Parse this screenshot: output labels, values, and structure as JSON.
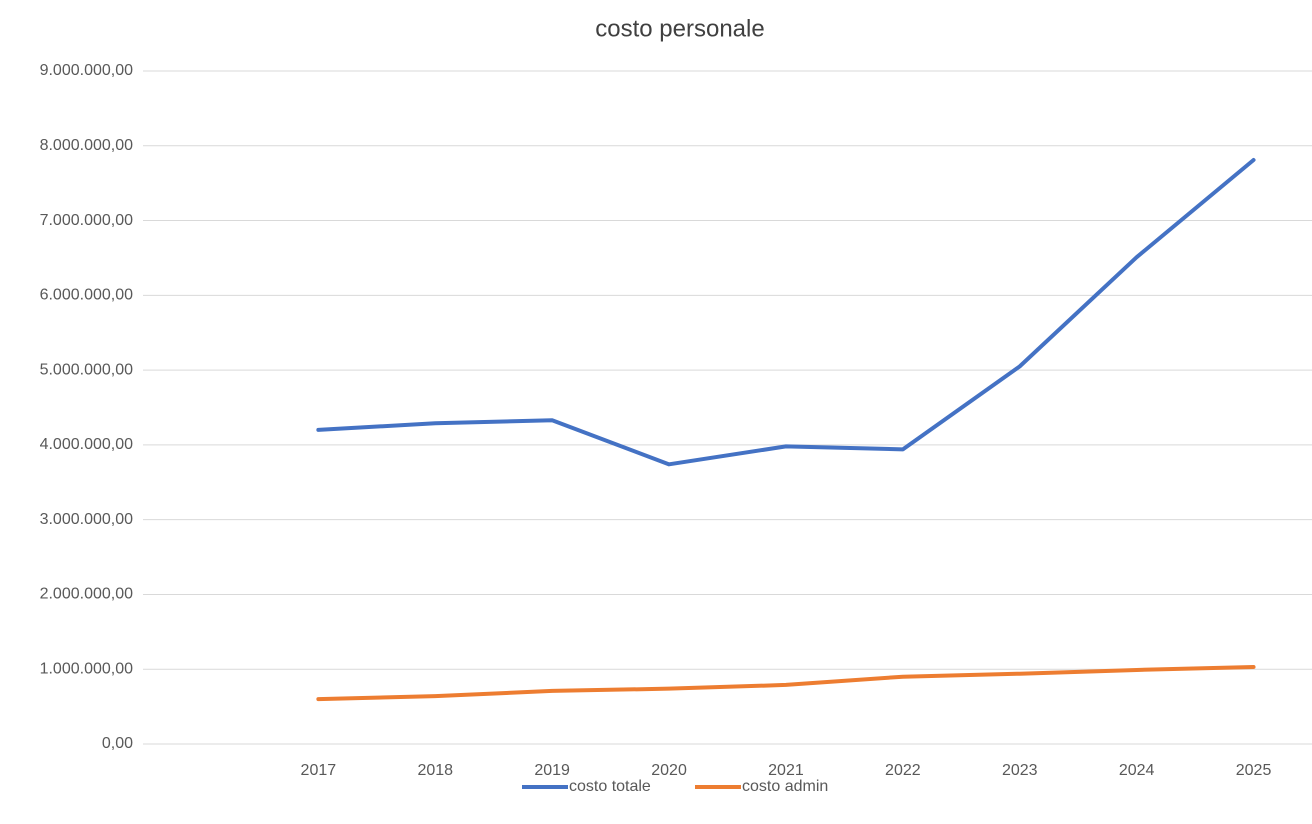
{
  "chart_data": {
    "type": "line",
    "title": "costo personale",
    "categories": [
      null,
      "2017",
      "2018",
      "2019",
      "2020",
      "2021",
      "2022",
      "2023",
      "2024",
      "2025"
    ],
    "series": [
      {
        "name": "costo totale",
        "color": "#4472c4",
        "values": [
          null,
          4200000,
          4290000,
          4330000,
          3740000,
          3980000,
          3940000,
          5050000,
          6510000,
          7810000
        ]
      },
      {
        "name": "costo admin",
        "color": "#ed7d31",
        "values": [
          null,
          600000,
          640000,
          710000,
          740000,
          790000,
          900000,
          940000,
          990000,
          1030000
        ]
      }
    ],
    "ylim": [
      0,
      9000000
    ],
    "yticks": [
      {
        "value": 0,
        "label": "0,00"
      },
      {
        "value": 1000000,
        "label": "1.000.000,00"
      },
      {
        "value": 2000000,
        "label": "2.000.000,00"
      },
      {
        "value": 3000000,
        "label": "3.000.000,00"
      },
      {
        "value": 4000000,
        "label": "4.000.000,00"
      },
      {
        "value": 5000000,
        "label": "5.000.000,00"
      },
      {
        "value": 6000000,
        "label": "6.000.000,00"
      },
      {
        "value": 7000000,
        "label": "7.000.000,00"
      },
      {
        "value": 8000000,
        "label": "8.000.000,00"
      },
      {
        "value": 9000000,
        "label": "9.000.000,00"
      }
    ],
    "grid": true,
    "legend": "bottom"
  }
}
